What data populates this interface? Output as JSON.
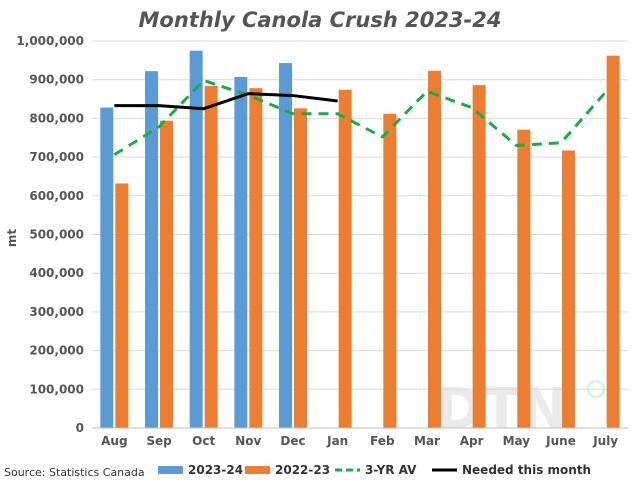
{
  "chart_data": {
    "type": "bar",
    "title": "Monthly Canola Crush 2023-24",
    "ylabel": "mt",
    "xlabel": "",
    "categories": [
      "Aug",
      "Sep",
      "Oct",
      "Nov",
      "Dec",
      "Jan",
      "Feb",
      "Mar",
      "Apr",
      "May",
      "June",
      "July"
    ],
    "ylim": [
      0,
      1000000
    ],
    "yticks": [
      0,
      100000,
      200000,
      300000,
      400000,
      500000,
      600000,
      700000,
      800000,
      900000,
      1000000
    ],
    "ytick_labels": [
      "0",
      "100,000",
      "200,000",
      "300,000",
      "400,000",
      "500,000",
      "600,000",
      "700,000",
      "800,000",
      "900,000",
      "1,000,000"
    ],
    "grid": true,
    "legend_position": "bottom",
    "series": [
      {
        "name": "2023-24",
        "kind": "bar",
        "color": "#5b9bd5",
        "values": [
          828000,
          922000,
          975000,
          907000,
          943000,
          null,
          null,
          null,
          null,
          null,
          null,
          null
        ]
      },
      {
        "name": "2022-23",
        "kind": "bar",
        "color": "#ed7d31",
        "values": [
          632000,
          794000,
          884000,
          878000,
          826000,
          874000,
          812000,
          923000,
          886000,
          771000,
          717000,
          962000
        ]
      },
      {
        "name": "3-YR AV",
        "kind": "line",
        "style": "dashed",
        "color": "#1aab4a",
        "values": [
          706000,
          778000,
          898000,
          860000,
          812000,
          812000,
          752000,
          870000,
          828000,
          730000,
          737000,
          868000
        ]
      },
      {
        "name": "Needed this month",
        "kind": "line",
        "style": "solid",
        "color": "#000000",
        "values": [
          833000,
          833000,
          825000,
          864000,
          859000,
          845000,
          null,
          null,
          null,
          null,
          null,
          null
        ]
      }
    ]
  },
  "source": "Source: Statistics Canada",
  "watermark": "DTN"
}
